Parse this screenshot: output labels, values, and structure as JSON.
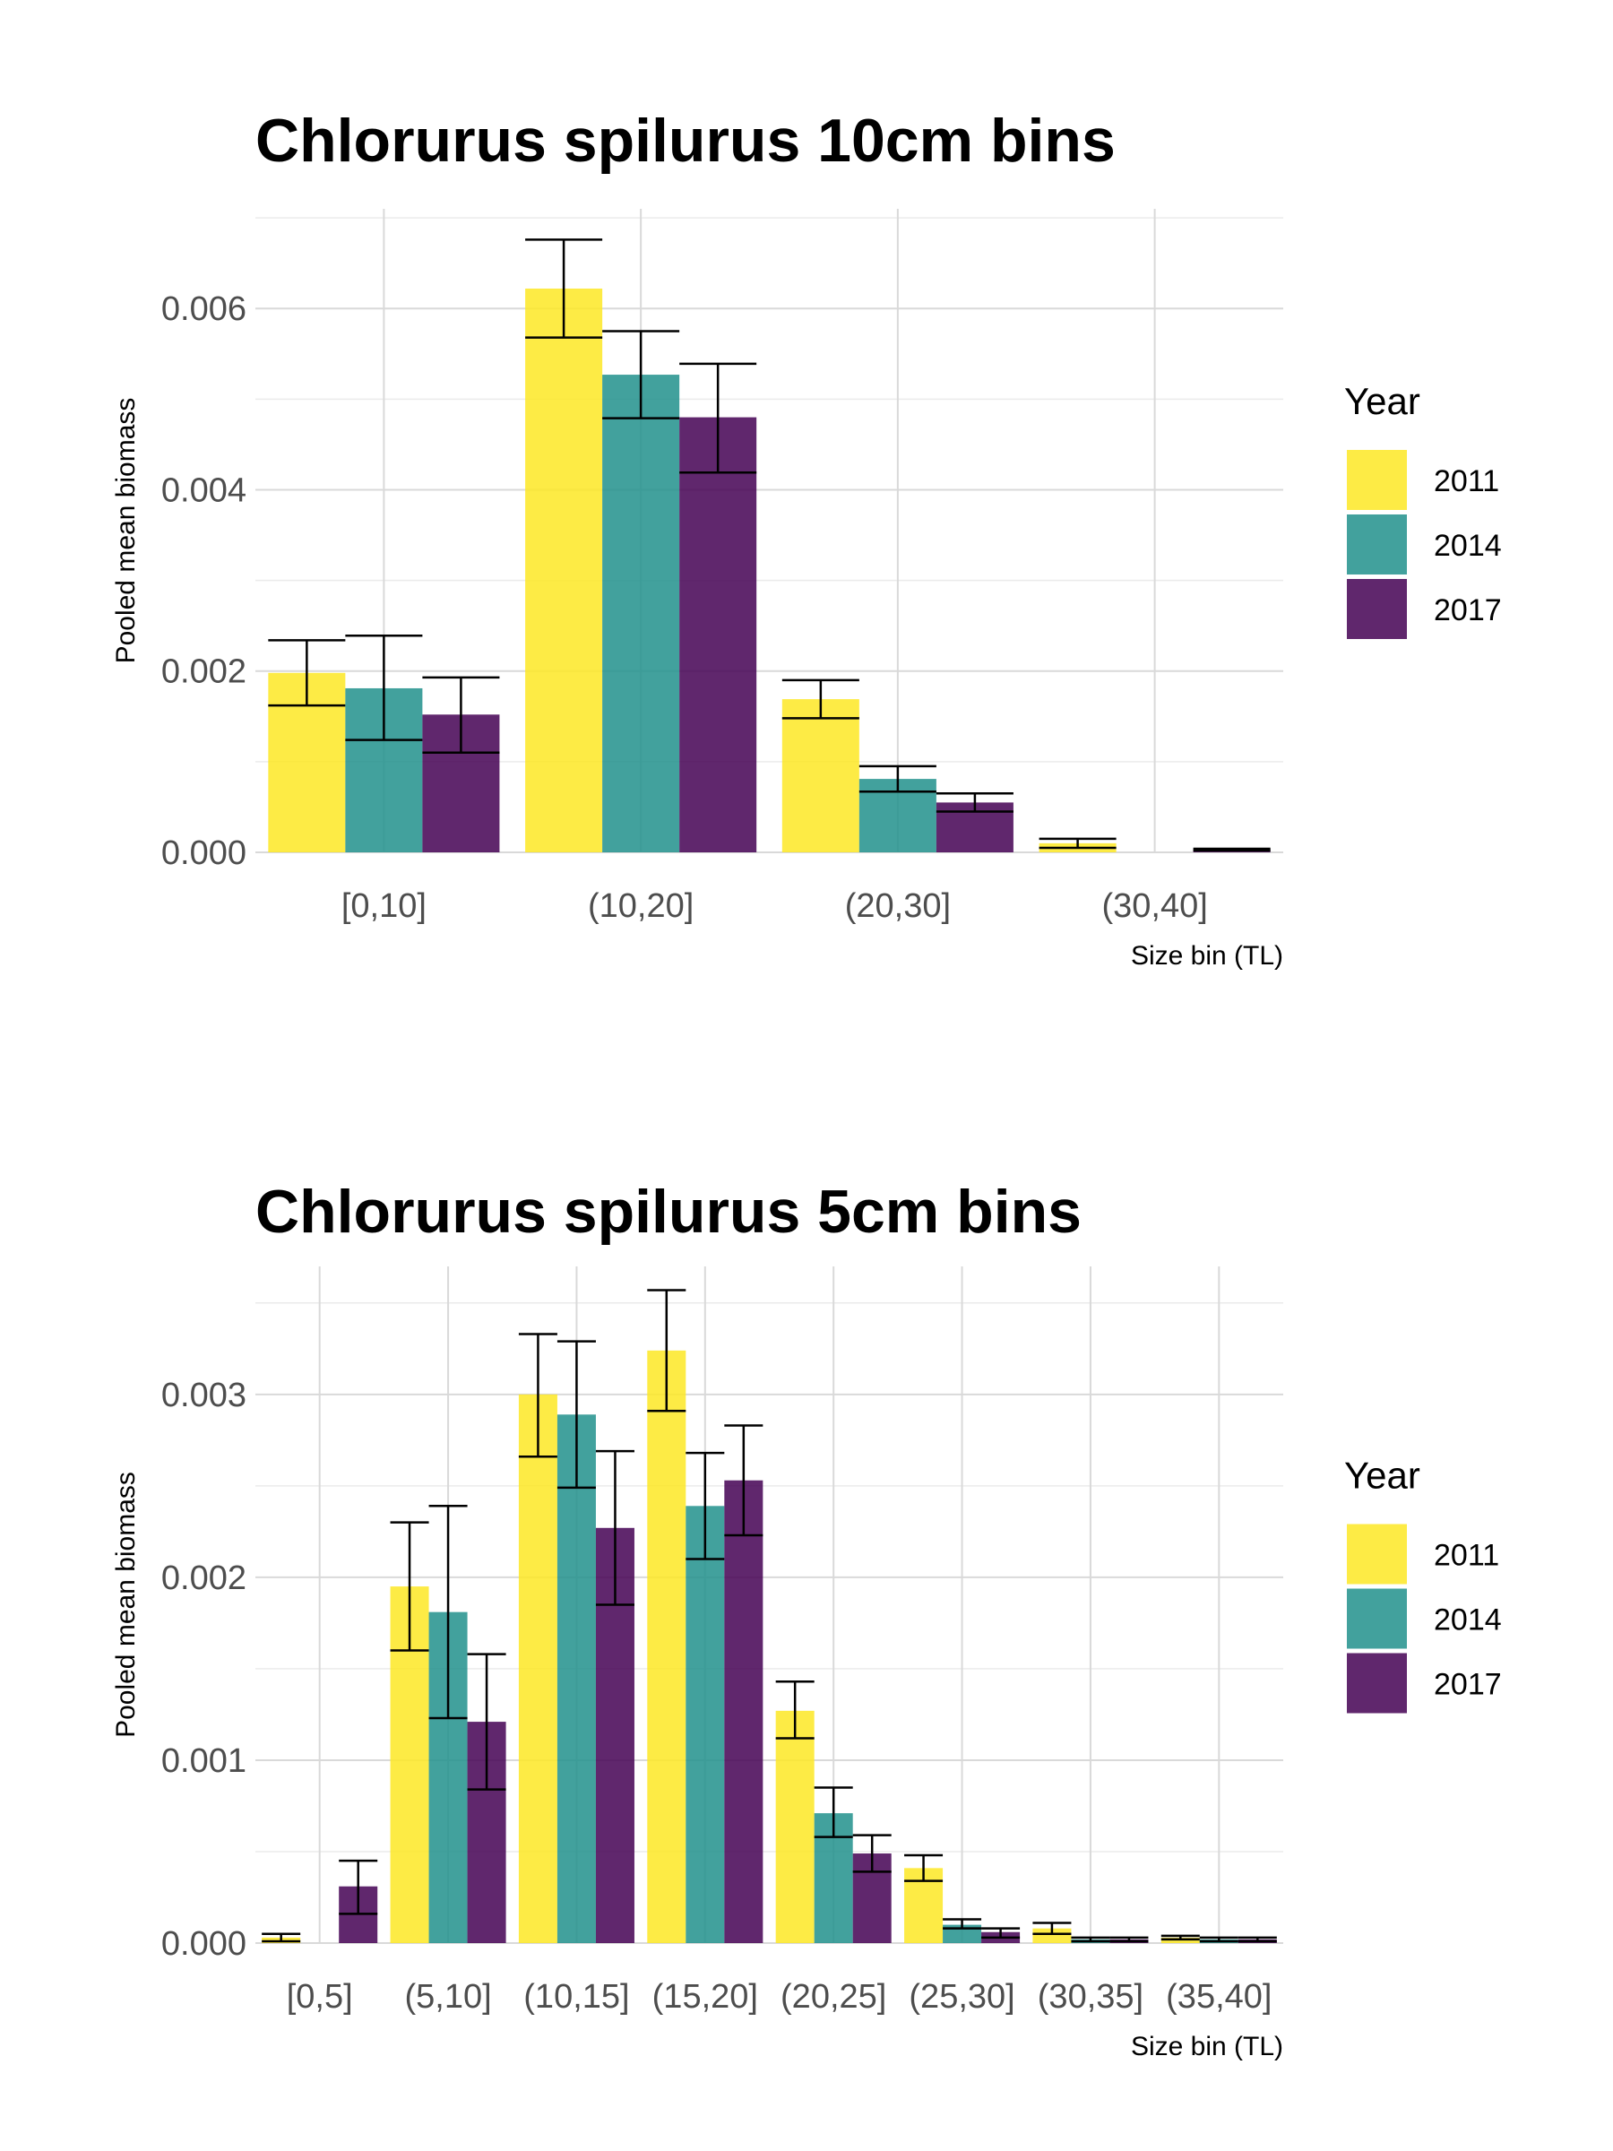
{
  "chart_data": [
    {
      "type": "bar",
      "title": "Chlorurus spilurus 10cm bins",
      "xlabel": "Size bin (TL)",
      "ylabel": "Pooled mean biomass",
      "ylim": [
        0,
        0.0071
      ],
      "yticks": [
        "0.000",
        "0.002",
        "0.004",
        "0.006"
      ],
      "ytick_values": [
        0,
        0.002,
        0.004,
        0.006
      ],
      "grid": true,
      "legend_title": "Year",
      "legend_position": "right",
      "categories": [
        "[0,10]",
        "(10,20]",
        "(20,30]",
        "(30,40]"
      ],
      "series": [
        {
          "name": "2011",
          "color": "#fde725",
          "values": [
            0.00198,
            0.00622,
            0.00169,
            0.0001
          ],
          "err_low": [
            0.00162,
            0.00568,
            0.00148,
            5e-05
          ],
          "err_high": [
            0.00234,
            0.00676,
            0.0019,
            0.00015
          ]
        },
        {
          "name": "2014",
          "color": "#21918c",
          "values": [
            0.00181,
            0.00527,
            0.00081,
            0
          ],
          "err_low": [
            0.00124,
            0.00479,
            0.00067,
            0
          ],
          "err_high": [
            0.00239,
            0.00575,
            0.00095,
            0
          ]
        },
        {
          "name": "2017",
          "color": "#440154",
          "values": [
            0.00152,
            0.0048,
            0.00055,
            3e-05
          ],
          "err_low": [
            0.0011,
            0.00419,
            0.00045,
            2e-05
          ],
          "err_high": [
            0.00193,
            0.00539,
            0.00065,
            4e-05
          ]
        }
      ]
    },
    {
      "type": "bar",
      "title": "Chlorurus spilurus 5cm bins",
      "xlabel": "Size bin (TL)",
      "ylabel": "Pooled mean biomass",
      "ylim": [
        0,
        0.0037
      ],
      "yticks": [
        "0.000",
        "0.001",
        "0.002",
        "0.003"
      ],
      "ytick_values": [
        0,
        0.001,
        0.002,
        0.003
      ],
      "grid": true,
      "legend_title": "Year",
      "legend_position": "right",
      "categories": [
        "[0,5]",
        "(5,10]",
        "(10,15]",
        "(15,20]",
        "(20,25]",
        "(25,30]",
        "(30,35]",
        "(35,40]"
      ],
      "series": [
        {
          "name": "2011",
          "color": "#fde725",
          "values": [
            3e-05,
            0.00195,
            0.003,
            0.00324,
            0.00127,
            0.00041,
            8e-05,
            3e-05
          ],
          "err_low": [
            1e-05,
            0.0016,
            0.00266,
            0.00291,
            0.00112,
            0.00034,
            5e-05,
            2e-05
          ],
          "err_high": [
            5e-05,
            0.0023,
            0.00333,
            0.00357,
            0.00143,
            0.00048,
            0.00011,
            4e-05
          ]
        },
        {
          "name": "2014",
          "color": "#21918c",
          "values": [
            0,
            0.00181,
            0.00289,
            0.00239,
            0.00071,
            0.0001,
            2e-05,
            2e-05
          ],
          "err_low": [
            0,
            0.00123,
            0.00249,
            0.0021,
            0.00058,
            8e-05,
            1e-05,
            1e-05
          ],
          "err_high": [
            0,
            0.00239,
            0.00329,
            0.00268,
            0.00085,
            0.00013,
            3e-05,
            3e-05
          ]
        },
        {
          "name": "2017",
          "color": "#440154",
          "values": [
            0.00031,
            0.00121,
            0.00227,
            0.00253,
            0.00049,
            6e-05,
            2e-05,
            2e-05
          ],
          "err_low": [
            0.00016,
            0.00084,
            0.00185,
            0.00223,
            0.00039,
            3e-05,
            1e-05,
            1e-05
          ],
          "err_high": [
            0.00045,
            0.00158,
            0.00269,
            0.00283,
            0.00059,
            8e-05,
            3e-05,
            3e-05
          ]
        }
      ]
    }
  ]
}
